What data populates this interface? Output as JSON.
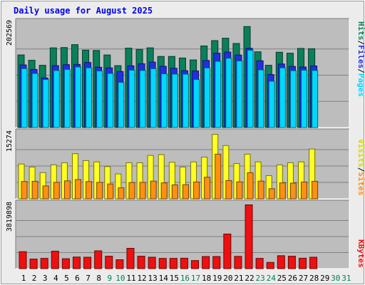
{
  "title": "Daily usage for August 2025",
  "colors": {
    "hits": "#0a7f5b",
    "files": "#2030e0",
    "pages": "#00d8ff",
    "visits": "#ffff22",
    "sites": "#ff9012",
    "kbytes": "#ee1010",
    "weekday_label": "#000000",
    "weekend_label": "#00805a",
    "plot_bg": "#bdbdbd",
    "grid": "#808080",
    "frame": "#ececec"
  },
  "chart_data": [
    {
      "type": "bar",
      "panel": "hits-files-pages",
      "ymax_label": "202569",
      "ylim": [
        0,
        202569
      ],
      "legend": {
        "pages": "Pages",
        "files": "Files",
        "hits": "Hits",
        "sep": "/"
      },
      "categories": [
        "1",
        "2",
        "3",
        "4",
        "5",
        "6",
        "7",
        "8",
        "9",
        "10",
        "11",
        "12",
        "13",
        "14",
        "15",
        "16",
        "17",
        "18",
        "19",
        "20",
        "21",
        "22",
        "23",
        "24",
        "25",
        "26",
        "27",
        "28",
        "29",
        "30",
        "31"
      ],
      "series": [
        {
          "name": "Hits",
          "values": [
            140400,
            130100,
            120400,
            154100,
            154700,
            160300,
            149700,
            149100,
            140400,
            119700,
            153600,
            151200,
            154100,
            137500,
            137500,
            134500,
            130800,
            157800,
            168100,
            172800,
            162600,
            195300,
            146500,
            120400,
            145700,
            143800,
            153000,
            152400,
            0,
            0,
            0
          ]
        },
        {
          "name": "Files",
          "values": [
            121100,
            112400,
            96000,
            119700,
            121700,
            122100,
            125900,
            116700,
            115400,
            108400,
            119400,
            123400,
            126600,
            118500,
            114700,
            110100,
            109400,
            129800,
            143800,
            146000,
            140300,
            153400,
            129200,
            102500,
            122900,
            118200,
            117100,
            119100,
            0,
            0,
            0
          ]
        },
        {
          "name": "Pages",
          "values": [
            113900,
            104600,
            92900,
            110300,
            112400,
            117100,
            115400,
            109400,
            104600,
            87300,
            111000,
            110300,
            113900,
            103900,
            103300,
            103300,
            92900,
            115300,
            128100,
            134100,
            128800,
            149500,
            111400,
            89500,
            115500,
            110000,
            111000,
            110400,
            0,
            0,
            0
          ]
        }
      ]
    },
    {
      "type": "bar",
      "panel": "visits-sites",
      "ymax_label": "15274",
      "ylim": [
        0,
        15274
      ],
      "legend": {
        "sites": "Sites",
        "visits": "Visits",
        "sep": "/"
      },
      "categories": [
        "1",
        "2",
        "3",
        "4",
        "5",
        "6",
        "7",
        "8",
        "9",
        "10",
        "11",
        "12",
        "13",
        "14",
        "15",
        "16",
        "17",
        "18",
        "19",
        "20",
        "21",
        "22",
        "23",
        "24",
        "25",
        "26",
        "27",
        "28",
        "29",
        "30",
        "31"
      ],
      "series": [
        {
          "name": "Visits",
          "values": [
            8100,
            7400,
            6100,
            7900,
            8400,
            10500,
            8900,
            8600,
            7500,
            5800,
            8400,
            8400,
            10100,
            10300,
            8500,
            7400,
            8600,
            9700,
            15000,
            12400,
            8200,
            10400,
            8600,
            5400,
            7900,
            8400,
            8600,
            11600,
            0,
            0,
            0
          ]
        },
        {
          "name": "Sites",
          "values": [
            4030,
            4080,
            3000,
            3830,
            4180,
            4490,
            4000,
            3830,
            3450,
            2550,
            3790,
            3830,
            4120,
            3700,
            3240,
            3290,
            3910,
            5020,
            10400,
            4250,
            3950,
            6080,
            4120,
            2350,
            3700,
            3650,
            3910,
            4080,
            0,
            0,
            0
          ]
        }
      ]
    },
    {
      "type": "bar",
      "panel": "kbytes",
      "ymax_label": "3819898",
      "ylim": [
        0,
        3819898
      ],
      "legend": {
        "kbytes": "KBytes"
      },
      "categories": [
        "1",
        "2",
        "3",
        "4",
        "5",
        "6",
        "7",
        "8",
        "9",
        "10",
        "11",
        "12",
        "13",
        "14",
        "15",
        "16",
        "17",
        "18",
        "19",
        "20",
        "21",
        "22",
        "23",
        "24",
        "25",
        "26",
        "27",
        "28",
        "29",
        "30",
        "31"
      ],
      "series": [
        {
          "name": "KBytes",
          "values": [
            1010000,
            570000,
            610000,
            1040000,
            590000,
            690000,
            680000,
            1060000,
            740000,
            530000,
            1210000,
            740000,
            680000,
            610000,
            610000,
            620000,
            480000,
            720000,
            720000,
            2060000,
            730000,
            3800000,
            610000,
            370000,
            770000,
            740000,
            620000,
            680000,
            0,
            0,
            0
          ]
        }
      ]
    }
  ],
  "weekend_days": [
    "9",
    "10",
    "16",
    "17",
    "23",
    "24",
    "30",
    "31"
  ]
}
